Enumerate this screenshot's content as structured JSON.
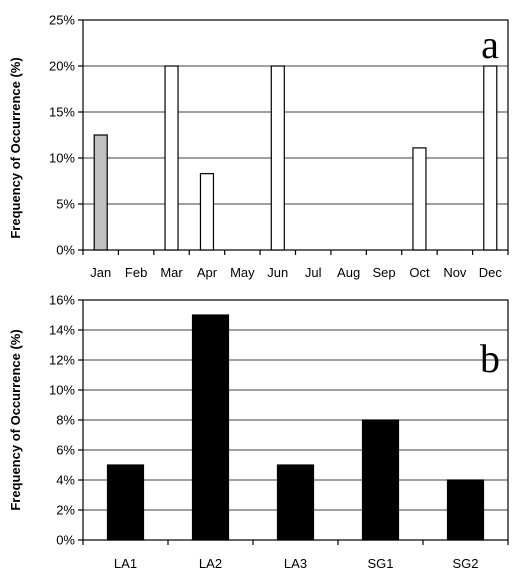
{
  "chart_data": [
    {
      "type": "bar",
      "panel_label": "a",
      "ylabel": "Frequency of Occurrence (%)",
      "xlabel": "",
      "ylim": [
        0,
        25
      ],
      "yticks": [
        "0%",
        "5%",
        "10%",
        "15%",
        "20%",
        "25%"
      ],
      "grid": true,
      "categories": [
        "Jan",
        "Feb",
        "Mar",
        "Apr",
        "May",
        "Jun",
        "Jul",
        "Aug",
        "Sep",
        "Oct",
        "Nov",
        "Dec"
      ],
      "values": [
        12.5,
        0,
        20,
        8.3,
        0,
        20,
        0,
        0,
        0,
        11.1,
        0,
        20
      ],
      "colors": [
        "#c0c0c0",
        "#ffffff",
        "#ffffff",
        "#ffffff",
        "#ffffff",
        "#ffffff",
        "#ffffff",
        "#ffffff",
        "#ffffff",
        "#ffffff",
        "#ffffff",
        "#ffffff"
      ]
    },
    {
      "type": "bar",
      "panel_label": "b",
      "ylabel": "Frequency of Occurrence (%)",
      "xlabel": "",
      "ylim": [
        0,
        16
      ],
      "yticks": [
        "0%",
        "2%",
        "4%",
        "6%",
        "8%",
        "10%",
        "12%",
        "14%",
        "16%"
      ],
      "grid": true,
      "categories": [
        "LA1",
        "LA2",
        "LA3",
        "SG1",
        "SG2"
      ],
      "values": [
        5,
        15,
        5,
        8,
        4
      ],
      "colors": [
        "#000000",
        "#000000",
        "#000000",
        "#000000",
        "#000000"
      ]
    }
  ]
}
